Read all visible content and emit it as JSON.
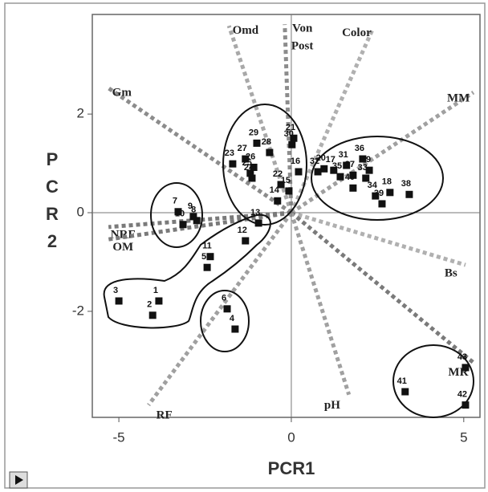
{
  "chart_data": {
    "type": "biplot",
    "xlabel": "PCR1",
    "ylabel": "PCR2",
    "xlim": [
      -5.77,
      5.47
    ],
    "ylim": [
      -4.15,
      4.02
    ],
    "xticks": [
      -5,
      0,
      5
    ],
    "yticks": [
      -2,
      0,
      2
    ],
    "point_color": "#111111",
    "points": [
      {
        "label": "1",
        "x": -3.84,
        "y": -1.79
      },
      {
        "label": "2",
        "x": -4.02,
        "y": -2.08
      },
      {
        "label": "3",
        "x": -5.0,
        "y": -1.79
      },
      {
        "label": "4",
        "x": -1.63,
        "y": -2.36
      },
      {
        "label": "5",
        "x": -2.44,
        "y": -1.11
      },
      {
        "label": "6",
        "x": -1.86,
        "y": -1.95
      },
      {
        "label": "7",
        "x": -3.28,
        "y": 0.02
      },
      {
        "label": "8",
        "x": -2.74,
        "y": -0.16
      },
      {
        "label": "9",
        "x": -2.84,
        "y": -0.08
      },
      {
        "label": "10",
        "x": -3.14,
        "y": -0.24
      },
      {
        "label": "11",
        "x": -2.35,
        "y": -0.89
      },
      {
        "label": "12",
        "x": -1.33,
        "y": -0.57
      },
      {
        "label": "13",
        "x": -0.95,
        "y": -0.21
      },
      {
        "label": "14",
        "x": -0.4,
        "y": 0.24
      },
      {
        "label": "15",
        "x": -0.07,
        "y": 0.44
      },
      {
        "label": "16",
        "x": 0.21,
        "y": 0.83
      },
      {
        "label": "17",
        "x": 1.23,
        "y": 0.86
      },
      {
        "label": "18",
        "x": 2.86,
        "y": 0.41
      },
      {
        "label": "19",
        "x": 2.26,
        "y": 0.86
      },
      {
        "label": "20",
        "x": 0.95,
        "y": 0.89
      },
      {
        "label": "21",
        "x": 0.07,
        "y": 1.51
      },
      {
        "label": "22",
        "x": -0.3,
        "y": 0.57
      },
      {
        "label": "23",
        "x": -1.7,
        "y": 0.99
      },
      {
        "label": "24",
        "x": -1.14,
        "y": 0.7
      },
      {
        "label": "25",
        "x": -1.19,
        "y": 0.8
      },
      {
        "label": "26",
        "x": -1.09,
        "y": 0.92
      },
      {
        "label": "27",
        "x": -1.33,
        "y": 1.09
      },
      {
        "label": "28",
        "x": -0.63,
        "y": 1.22
      },
      {
        "label": "29",
        "x": -1.0,
        "y": 1.41
      },
      {
        "label": "30",
        "x": 0.02,
        "y": 1.38
      },
      {
        "label": "31",
        "x": 1.6,
        "y": 0.96
      },
      {
        "label": "32",
        "x": 0.77,
        "y": 0.83
      },
      {
        "label": "33",
        "x": 2.16,
        "y": 0.7
      },
      {
        "label": "34",
        "x": 2.44,
        "y": 0.34
      },
      {
        "label": "35",
        "x": 1.42,
        "y": 0.73
      },
      {
        "label": "36",
        "x": 2.07,
        "y": 1.09
      },
      {
        "label": "37",
        "x": 1.79,
        "y": 0.76
      },
      {
        "label": "38",
        "x": 3.42,
        "y": 0.37
      },
      {
        "label": "39",
        "x": 2.63,
        "y": 0.18
      },
      {
        "label": "40",
        "x": 1.79,
        "y": 0.5
      },
      {
        "label": "41",
        "x": 3.3,
        "y": -3.63
      },
      {
        "label": "42",
        "x": 5.05,
        "y": -3.9
      },
      {
        "label": "43",
        "x": 5.05,
        "y": -3.14
      }
    ],
    "loadings": [
      {
        "name": "Omd",
        "x": -1.81,
        "y": 3.79,
        "color": "#a8a8a8"
      },
      {
        "name": "Von Post",
        "x": -0.19,
        "y": 3.82,
        "color": "#8c8c8c"
      },
      {
        "name": "Color",
        "x": 2.37,
        "y": 3.74,
        "color": "#b0b0b0"
      },
      {
        "name": "Gm",
        "x": -5.35,
        "y": 2.55,
        "color": "#8c8c8c"
      },
      {
        "name": "MM",
        "x": 5.28,
        "y": 2.44,
        "color": "#a0a0a0"
      },
      {
        "name": "NRF",
        "x": -5.3,
        "y": -0.29,
        "color": "#7a7a7a"
      },
      {
        "name": "OM",
        "x": -5.3,
        "y": -0.54,
        "color": "#7a7a7a"
      },
      {
        "name": "Bs",
        "x": 5.05,
        "y": -1.06,
        "color": "#b0b0b0"
      },
      {
        "name": "MR",
        "x": 5.28,
        "y": -3.04,
        "color": "#7a7a7a"
      },
      {
        "name": "pH",
        "x": 1.67,
        "y": -3.69,
        "color": "#a0a0a0"
      },
      {
        "name": "RF",
        "x": -4.14,
        "y": -3.9,
        "color": "#a0a0a0"
      }
    ]
  }
}
